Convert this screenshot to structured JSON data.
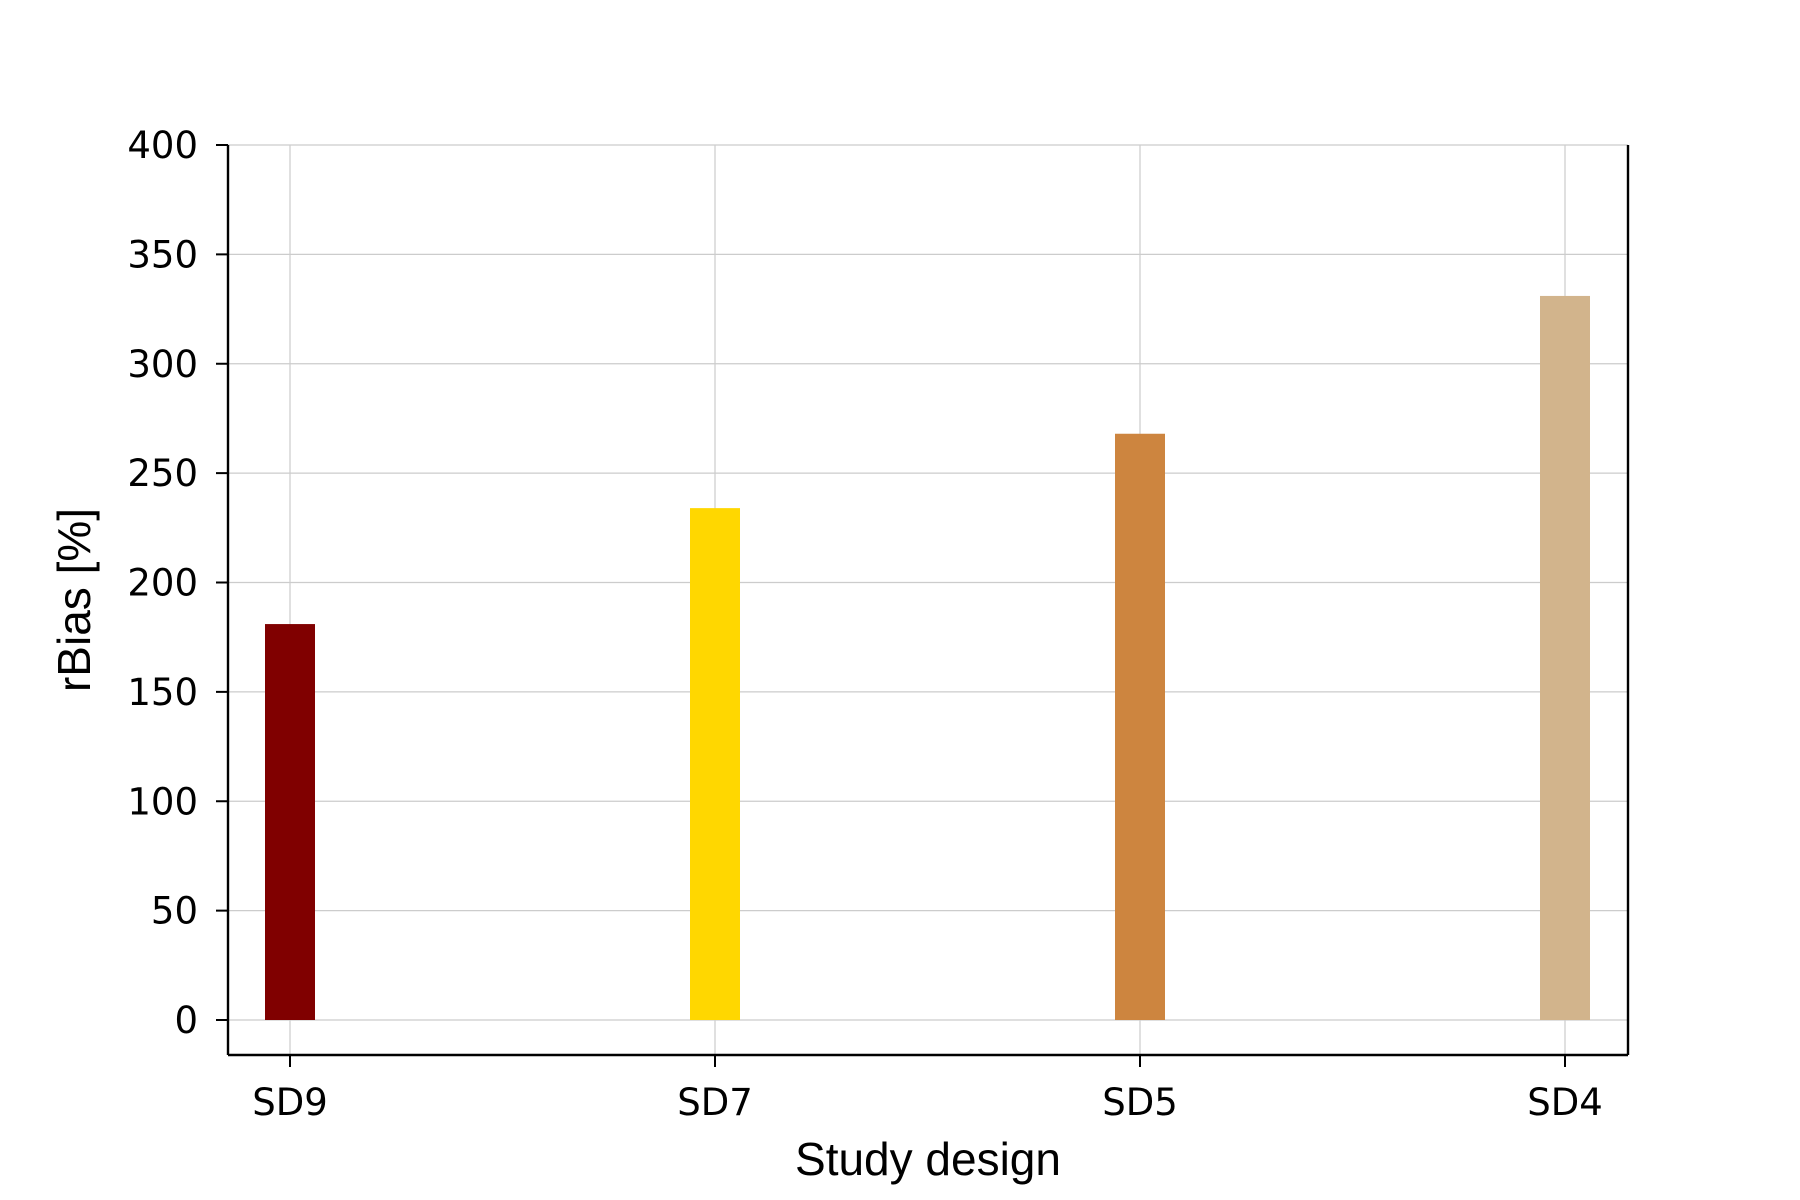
{
  "chart_data": {
    "type": "bar",
    "title": "",
    "xlabel": "Study design",
    "ylabel": "rBias [%]",
    "categories": [
      "SD9",
      "SD7",
      "SD5",
      "SD4"
    ],
    "values": [
      181,
      234,
      268,
      331
    ],
    "colors": [
      "#800000",
      "#FFD700",
      "#CD853F",
      "#D2B48C"
    ],
    "ylim": [
      -16,
      400
    ],
    "yticks": [
      0,
      50,
      100,
      150,
      200,
      250,
      300,
      350,
      400
    ],
    "grid": true,
    "legend": "none"
  }
}
